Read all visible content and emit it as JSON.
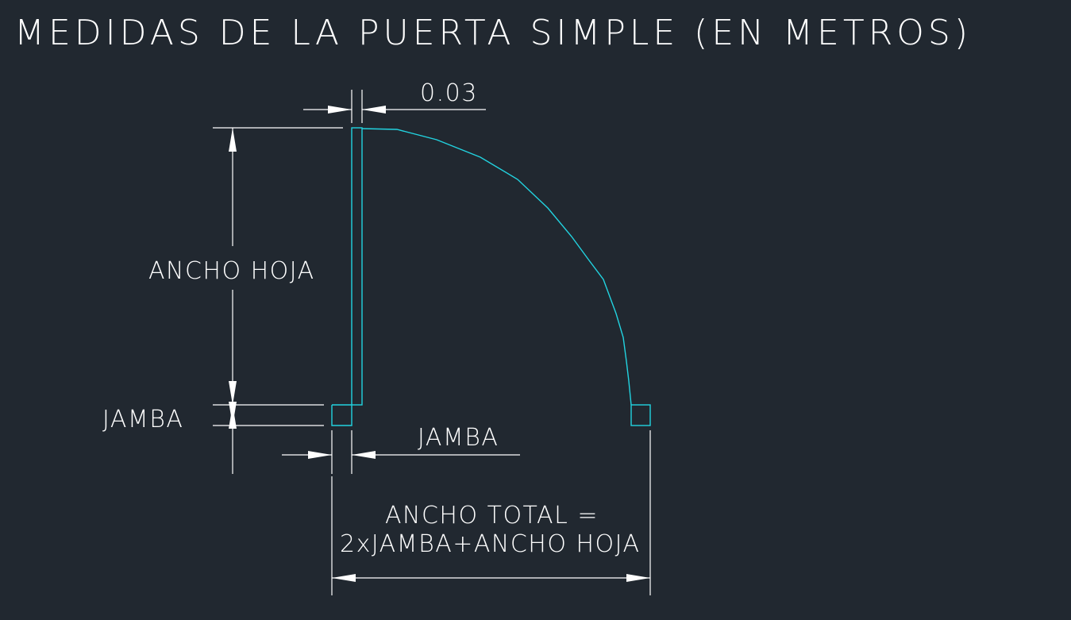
{
  "title": "MEDIDAS DE LA PUERTA SIMPLE (EN METROS)",
  "labels": {
    "door_thickness": "0.03",
    "leaf_width": "ANCHO HOJA",
    "jamb_left": "JAMBA",
    "jamb_bottom": "JAMBA",
    "total_line1": "ANCHO TOTAL =",
    "total_line2": "2xJAMBA+ANCHO HOJA"
  },
  "colors": {
    "background": "#212830",
    "geometry": "#22d3e0",
    "dimensions": "#ffffff"
  }
}
